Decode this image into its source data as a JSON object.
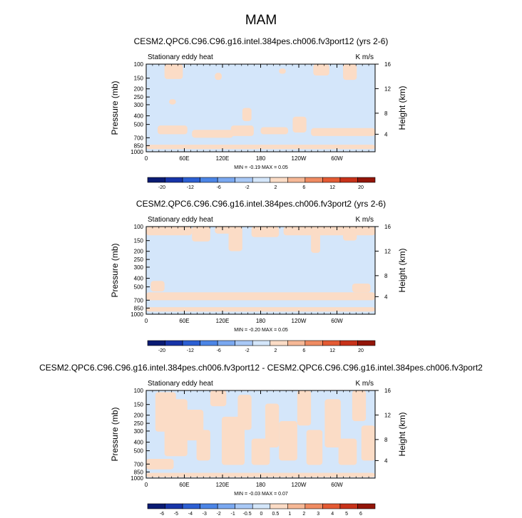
{
  "title": "MAM",
  "colorbar_colors": [
    "#0a1b73",
    "#1734a8",
    "#2c5fd3",
    "#4c85e6",
    "#7aa8f0",
    "#a9c9f6",
    "#d4e6fa",
    "#fbdcc6",
    "#f6b896",
    "#ef8b62",
    "#e45a33",
    "#c8321a",
    "#931509"
  ],
  "chart_data": [
    {
      "type": "heatmap",
      "title": "CESM2.QPC6.C96.C96.g16.intel.384pes.ch006.fv3port12 (yrs 2-6)",
      "subtitle_left": "Stationary eddy heat",
      "subtitle_right": "K m/s",
      "ylabel": "Pressure (mb)",
      "ylabel_right": "Height (km)",
      "x_ticks": [
        "0",
        "60E",
        "120E",
        "180",
        "120W",
        "60W"
      ],
      "y_ticks": [
        "100",
        "150",
        "200",
        "250",
        "300",
        "400",
        "500",
        "700",
        "850",
        "1000"
      ],
      "y_right_ticks": [
        "16",
        "12",
        "8",
        "4"
      ],
      "min_max_label": "MIN = -0.19  MAX =  0.05",
      "colorbar_labels": [
        "-20",
        "-12",
        "-6",
        "-2",
        "2",
        "6",
        "12",
        "20"
      ],
      "background_color": "#d4e6fa",
      "positive_color": "#fbdcc6",
      "pattern": "A"
    },
    {
      "type": "heatmap",
      "title": "CESM2.QPC6.C96.C96.g16.intel.384pes.ch006.fv3port2 (yrs 2-6)",
      "subtitle_left": "Stationary eddy heat",
      "subtitle_right": "K m/s",
      "ylabel": "Pressure (mb)",
      "ylabel_right": "Height (km)",
      "x_ticks": [
        "0",
        "60E",
        "120E",
        "180",
        "120W",
        "60W"
      ],
      "y_ticks": [
        "100",
        "150",
        "200",
        "250",
        "300",
        "400",
        "500",
        "700",
        "850",
        "1000"
      ],
      "y_right_ticks": [
        "16",
        "12",
        "8",
        "4"
      ],
      "min_max_label": "MIN = -0.20  MAX =  0.05",
      "colorbar_labels": [
        "-20",
        "-12",
        "-6",
        "-2",
        "2",
        "6",
        "12",
        "20"
      ],
      "background_color": "#d4e6fa",
      "positive_color": "#fbdcc6",
      "pattern": "B"
    },
    {
      "type": "heatmap",
      "title": "CESM2.QPC6.C96.C96.g16.intel.384pes.ch006.fv3port12 - CESM2.QPC6.C96.C96.g16.intel.384pes.ch006.fv3port2",
      "subtitle_left": "Stationary eddy heat",
      "subtitle_right": "K m/s",
      "ylabel": "Pressure (mb)",
      "ylabel_right": "Height (km)",
      "x_ticks": [
        "0",
        "60E",
        "120E",
        "180",
        "120W",
        "60W"
      ],
      "y_ticks": [
        "100",
        "150",
        "200",
        "250",
        "300",
        "400",
        "500",
        "700",
        "850",
        "1000"
      ],
      "y_right_ticks": [
        "16",
        "12",
        "8",
        "4"
      ],
      "min_max_label": "MIN = -0.03  MAX =  0.07",
      "colorbar_labels": [
        "-6",
        "-5",
        "-4",
        "-3",
        "-2",
        "-1",
        "-0.5",
        "0",
        "0.5",
        "1",
        "2",
        "3",
        "4",
        "5",
        "6"
      ],
      "background_color": "#d4e6fa",
      "positive_color": "#fbdcc6",
      "pattern": "C"
    }
  ]
}
